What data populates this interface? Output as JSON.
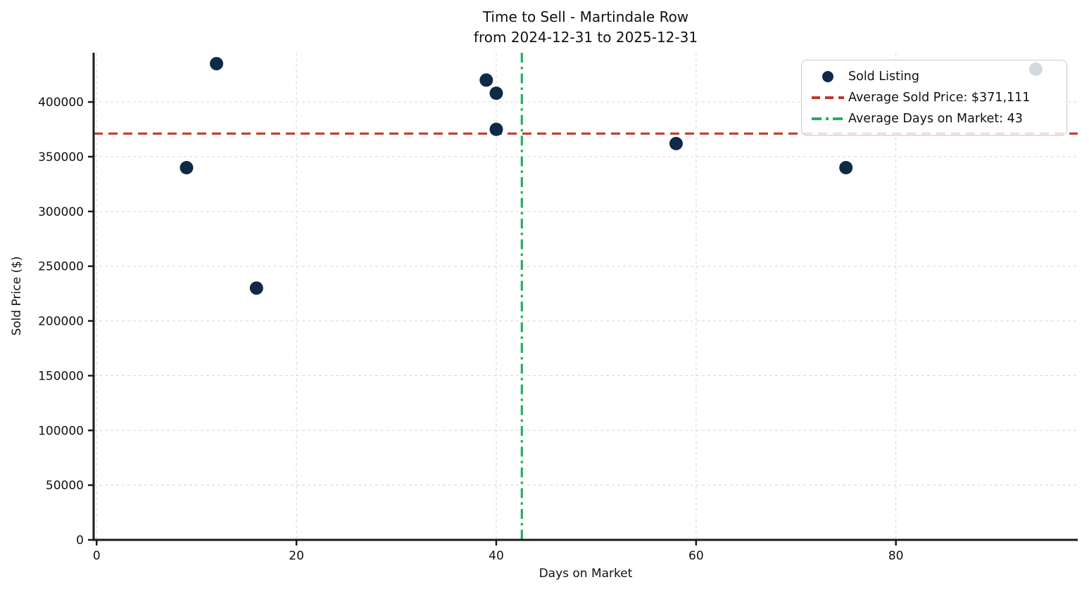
{
  "chart_data": {
    "type": "scatter",
    "title": {
      "line1": "Time to Sell - Martindale Row",
      "line2": "from 2024-12-31 to 2025-12-31"
    },
    "xlabel": "Days on Market",
    "ylabel": "Sold Price ($)",
    "xlim": [
      -0.3,
      98.2
    ],
    "ylim": [
      0,
      445000
    ],
    "x_ticks": [
      0,
      20,
      40,
      60,
      80
    ],
    "y_ticks": [
      0,
      50000,
      100000,
      150000,
      200000,
      250000,
      300000,
      350000,
      400000
    ],
    "grid": true,
    "legend_position": "upper right",
    "points": [
      {
        "days": 12,
        "price": 435000
      },
      {
        "days": 9,
        "price": 340000
      },
      {
        "days": 16,
        "price": 230000
      },
      {
        "days": 39,
        "price": 420000
      },
      {
        "days": 40,
        "price": 408000
      },
      {
        "days": 40,
        "price": 375000
      },
      {
        "days": 58,
        "price": 362000
      },
      {
        "days": 75,
        "price": 340000
      },
      {
        "days": 94,
        "price": 430000
      }
    ],
    "average_sold_price": 371111,
    "average_days_on_market_display": 43,
    "average_days_on_market_line": 42.56,
    "legend": [
      {
        "marker": "dot",
        "label": "Sold Listing"
      },
      {
        "marker": "dashed-line",
        "label": "Average Sold Price: $371,111"
      },
      {
        "marker": "dashdot-line",
        "label": "Average Days on Market: 43"
      }
    ],
    "colors": {
      "point": "#0e2a47",
      "avg_price_line": "#c0392b",
      "avg_days_line": "#27ae60",
      "grid": "#dcdcdc",
      "axis": "#1a1a1a",
      "text": "#111111"
    }
  }
}
